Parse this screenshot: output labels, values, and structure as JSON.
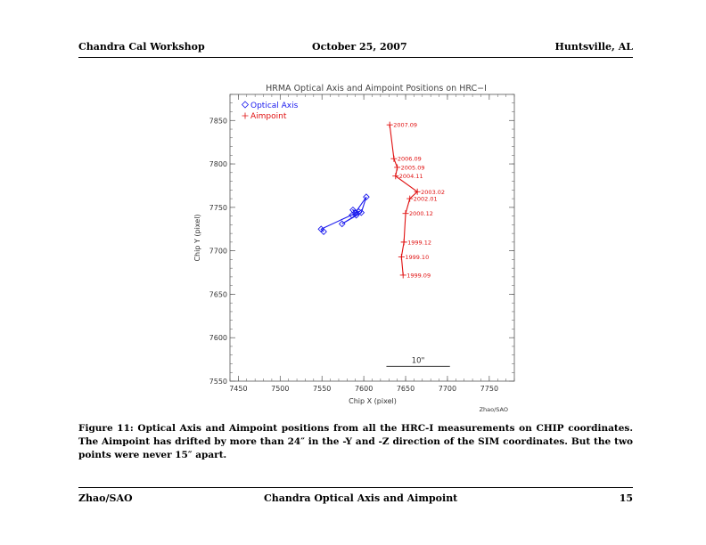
{
  "header": {
    "left": "Chandra Cal Workshop",
    "center": "October 25, 2007",
    "right": "Huntsville, AL"
  },
  "footer": {
    "left": "Zhao/SAO",
    "center": "Chandra Optical Axis and Aimpoint",
    "right": "15"
  },
  "caption": "Figure 11: Optical Axis and Aimpoint positions from all the HRC-I measurements on CHIP coordinates. The Aimpoint has drifted by more than 24″ in the -Y and -Z direction of the SIM coordinates. But the two points were never 15″ apart.",
  "colors": {
    "optical_axis": "#1a1aee",
    "aimpoint": "#e01010",
    "axes": "#555555"
  },
  "chart_data": {
    "type": "scatter",
    "title": "HRMA Optical Axis and Aimpoint Positions on HRC−I",
    "xlabel": "Chip X (pixel)",
    "ylabel": "Chip Y (pixel)",
    "xlim": [
      7440,
      7780
    ],
    "ylim": [
      7550,
      7880
    ],
    "xticks": [
      7450,
      7500,
      7550,
      7600,
      7650,
      7700,
      7750
    ],
    "yticks": [
      7550,
      7600,
      7650,
      7700,
      7750,
      7800,
      7850
    ],
    "legend_position": "top-left",
    "credit": "Zhao/SAO",
    "scale_bar": {
      "label": "10\"",
      "x_from": 7627,
      "x_to": 7703,
      "y": 7567
    },
    "series": [
      {
        "name": "Optical Axis",
        "marker": "diamond",
        "color": "#1a1aee",
        "points": [
          {
            "x": 7552,
            "y": 7722
          },
          {
            "x": 7549,
            "y": 7725
          },
          {
            "x": 7594,
            "y": 7745
          },
          {
            "x": 7587,
            "y": 7747
          },
          {
            "x": 7591,
            "y": 7741
          },
          {
            "x": 7574,
            "y": 7731
          },
          {
            "x": 7597,
            "y": 7744
          },
          {
            "x": 7603,
            "y": 7762
          },
          {
            "x": 7590,
            "y": 7744
          },
          {
            "x": 7586,
            "y": 7741
          }
        ]
      },
      {
        "name": "Aimpoint",
        "marker": "plus",
        "color": "#e01010",
        "points": [
          {
            "x": 7647,
            "y": 7672,
            "label": "1999.09"
          },
          {
            "x": 7645,
            "y": 7693,
            "label": "1999.10"
          },
          {
            "x": 7648,
            "y": 7710,
            "label": "1999.12"
          },
          {
            "x": 7650,
            "y": 7743,
            "label": "2000.12"
          },
          {
            "x": 7655,
            "y": 7760,
            "label": "2002.01"
          },
          {
            "x": 7664,
            "y": 7768,
            "label": "2003.02"
          },
          {
            "x": 7638,
            "y": 7786,
            "label": "2004.11"
          },
          {
            "x": 7640,
            "y": 7796,
            "label": "2005.09"
          },
          {
            "x": 7636,
            "y": 7806,
            "label": "2006.09"
          },
          {
            "x": 7631,
            "y": 7845,
            "label": "2007.09"
          }
        ]
      }
    ]
  }
}
